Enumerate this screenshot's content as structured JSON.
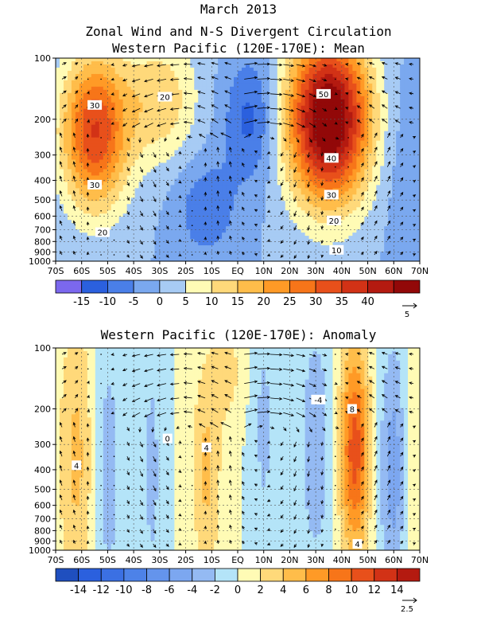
{
  "titles": {
    "line1": "March 2013",
    "line2": "Zonal Wind and N-S Divergent Circulation",
    "line3": "Western Pacific (120E-170E): Mean",
    "panel2": "Western Pacific (120E-170E): Anomaly"
  },
  "chart_data": [
    {
      "type": "heatmap",
      "title": "Western Pacific (120E-170E): Mean",
      "x_ticks": [
        "70S",
        "60S",
        "50S",
        "40S",
        "30S",
        "20S",
        "10S",
        "EQ",
        "10N",
        "20N",
        "30N",
        "40N",
        "50N",
        "60N",
        "70N"
      ],
      "y_ticks": [
        "100",
        "200",
        "300",
        "400",
        "500",
        "600",
        "700",
        "800",
        "900",
        "1000"
      ],
      "y_scale": "log-pressure",
      "ylim": [
        1000,
        100
      ],
      "colorbar_levels": [
        -20,
        -15,
        -10,
        -5,
        0,
        5,
        10,
        15,
        20,
        25,
        30,
        35,
        40,
        45
      ],
      "colorbar_labels": [
        "-15",
        "-10",
        "-5",
        "0",
        "5",
        "10",
        "15",
        "20",
        "25",
        "30",
        "35",
        "40"
      ],
      "colorbar_colors": [
        "#7b68ee",
        "#2b60de",
        "#4a7fe8",
        "#7aa8ef",
        "#a7cbf4",
        "#fffbb5",
        "#ffd97a",
        "#ffbd4a",
        "#ff9a26",
        "#f77519",
        "#e8501b",
        "#d23216",
        "#b41a10",
        "#920808"
      ],
      "vector_scale": "5",
      "contour_labels": [
        {
          "text": "30",
          "lat": -55,
          "p": 170
        },
        {
          "text": "30",
          "lat": -55,
          "p": 420
        },
        {
          "text": "20",
          "lat": -52,
          "p": 720
        },
        {
          "text": "20",
          "lat": -28,
          "p": 155
        },
        {
          "text": "50",
          "lat": 33,
          "p": 150
        },
        {
          "text": "40",
          "lat": 36,
          "p": 310
        },
        {
          "text": "30",
          "lat": 36,
          "p": 470
        },
        {
          "text": "20",
          "lat": 37,
          "p": 630
        },
        {
          "text": "10",
          "lat": 38,
          "p": 880
        }
      ],
      "jets": [
        {
          "lat": -55,
          "p": 230,
          "amp": 35,
          "sx": 9,
          "sp": 0.6
        },
        {
          "lat": -30,
          "p": 160,
          "amp": 14,
          "sx": 10,
          "sp": 0.5
        },
        {
          "lat": 35,
          "p": 200,
          "amp": 54,
          "sx": 11,
          "sp": 0.65
        },
        {
          "lat": 5,
          "p": 200,
          "amp": -12,
          "sx": 7,
          "sp": 0.5
        },
        {
          "lat": -12,
          "p": 550,
          "amp": -9,
          "sx": 8,
          "sp": 0.4
        },
        {
          "lat": 62,
          "p": 300,
          "amp": -3,
          "sx": 6,
          "sp": 0.8
        }
      ]
    },
    {
      "type": "heatmap",
      "title": "Western Pacific (120E-170E): Anomaly",
      "x_ticks": [
        "70S",
        "60S",
        "50S",
        "40S",
        "30S",
        "20S",
        "10S",
        "EQ",
        "10N",
        "20N",
        "30N",
        "40N",
        "50N",
        "60N",
        "70N"
      ],
      "y_ticks": [
        "100",
        "200",
        "300",
        "400",
        "500",
        "600",
        "700",
        "800",
        "900",
        "1000"
      ],
      "y_scale": "log-pressure",
      "ylim": [
        1000,
        100
      ],
      "colorbar_levels": [
        -16,
        -14,
        -12,
        -10,
        -8,
        -6,
        -4,
        -2,
        0,
        2,
        4,
        6,
        8,
        10,
        12,
        14,
        16
      ],
      "colorbar_labels": [
        "-14",
        "-12",
        "-10",
        "-8",
        "-6",
        "-4",
        "-2",
        "0",
        "2",
        "4",
        "6",
        "8",
        "10",
        "12",
        "14"
      ],
      "colorbar_colors": [
        "#1f4fbf",
        "#2b60de",
        "#3b70e3",
        "#4d82e8",
        "#6494ec",
        "#7ca7f0",
        "#94baf3",
        "#b4e4f8",
        "#fffbb5",
        "#ffd97a",
        "#ffbd4a",
        "#ff9a26",
        "#f77519",
        "#e8501b",
        "#d23216",
        "#b41a10"
      ],
      "vector_scale": "2.5",
      "contour_labels": [
        {
          "text": "4",
          "lat": -62,
          "p": 380
        },
        {
          "text": "0",
          "lat": -27,
          "p": 280
        },
        {
          "text": "4",
          "lat": -12,
          "p": 310
        },
        {
          "text": "-4",
          "lat": 31,
          "p": 180
        },
        {
          "text": "8",
          "lat": 44,
          "p": 200
        },
        {
          "text": "4",
          "lat": 46,
          "p": 930
        }
      ],
      "jets": [
        {
          "lat": -62,
          "p": 350,
          "amp": 4.5,
          "sx": 5,
          "sp": 1.2
        },
        {
          "lat": -12,
          "p": 400,
          "amp": 4.5,
          "sx": 4,
          "sp": 0.9
        },
        {
          "lat": -4,
          "p": 130,
          "amp": 3,
          "sx": 4,
          "sp": 0.4
        },
        {
          "lat": 45,
          "p": 320,
          "amp": 11,
          "sx": 4,
          "sp": 0.85
        },
        {
          "lat": -50,
          "p": 400,
          "amp": -3,
          "sx": 4,
          "sp": 1.2
        },
        {
          "lat": -33,
          "p": 400,
          "amp": -2.5,
          "sx": 3,
          "sp": 1.2
        },
        {
          "lat": 10,
          "p": 250,
          "amp": -2.5,
          "sx": 3,
          "sp": 1
        },
        {
          "lat": 30,
          "p": 300,
          "amp": -4,
          "sx": 4,
          "sp": 0.9
        },
        {
          "lat": 60,
          "p": 400,
          "amp": -5,
          "sx": 4,
          "sp": 1
        },
        {
          "lat": 66,
          "p": 400,
          "amp": 3,
          "sx": 2,
          "sp": 1
        }
      ]
    }
  ]
}
